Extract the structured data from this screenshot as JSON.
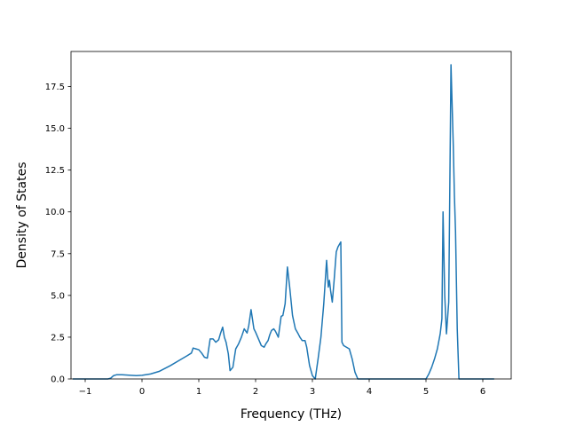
{
  "chart_data": {
    "type": "line",
    "title": "",
    "xlabel": "Frequency (THz)",
    "ylabel": "Density of States",
    "xlim": [
      -1.25,
      6.5
    ],
    "ylim": [
      0,
      19.6
    ],
    "grid": false,
    "legend": "none",
    "xticks": [
      -1,
      0,
      1,
      2,
      3,
      4,
      5,
      6
    ],
    "xtick_labels": [
      "−1",
      "0",
      "1",
      "2",
      "3",
      "4",
      "5",
      "6"
    ],
    "yticks": [
      0,
      2.5,
      5,
      7.5,
      10,
      12.5,
      15,
      17.5
    ],
    "ytick_labels": [
      "0.0",
      "2.5",
      "5.0",
      "7.5",
      "10.0",
      "12.5",
      "15.0",
      "17.5"
    ],
    "series": [
      {
        "color": "#1f77b4",
        "x": [
          -1.22,
          -0.6,
          -0.55,
          -0.5,
          -0.45,
          -0.35,
          -0.2,
          -0.1,
          0.0,
          0.15,
          0.3,
          0.5,
          0.7,
          0.8,
          0.87,
          0.9,
          0.95,
          1.0,
          1.05,
          1.1,
          1.15,
          1.2,
          1.25,
          1.3,
          1.35,
          1.38,
          1.42,
          1.45,
          1.48,
          1.52,
          1.55,
          1.6,
          1.65,
          1.7,
          1.75,
          1.8,
          1.85,
          1.88,
          1.92,
          1.97,
          2.0,
          2.05,
          2.1,
          2.15,
          2.18,
          2.22,
          2.25,
          2.28,
          2.32,
          2.35,
          2.4,
          2.45,
          2.48,
          2.52,
          2.56,
          2.6,
          2.65,
          2.7,
          2.75,
          2.78,
          2.82,
          2.87,
          2.9,
          2.95,
          3.0,
          3.05,
          3.1,
          3.15,
          3.2,
          3.25,
          3.28,
          3.3,
          3.32,
          3.35,
          3.38,
          3.42,
          3.45,
          3.5,
          3.52,
          3.55,
          3.6,
          3.65,
          3.7,
          3.75,
          3.8,
          3.82,
          4.2,
          4.5,
          5.0,
          5.05,
          5.1,
          5.15,
          5.2,
          5.25,
          5.28,
          5.3,
          5.33,
          5.36,
          5.4,
          5.44,
          5.48,
          5.5,
          5.52,
          5.55,
          5.58,
          5.62,
          6.2
        ],
        "y": [
          0.0,
          0.0,
          0.05,
          0.2,
          0.25,
          0.25,
          0.22,
          0.2,
          0.22,
          0.3,
          0.45,
          0.8,
          1.2,
          1.4,
          1.55,
          1.85,
          1.8,
          1.75,
          1.55,
          1.3,
          1.25,
          2.4,
          2.4,
          2.2,
          2.35,
          2.7,
          3.1,
          2.5,
          2.2,
          1.5,
          0.5,
          0.7,
          1.8,
          2.1,
          2.5,
          3.0,
          2.75,
          3.2,
          4.15,
          3.0,
          2.8,
          2.4,
          2.0,
          1.9,
          2.1,
          2.3,
          2.65,
          2.9,
          3.0,
          2.85,
          2.5,
          3.75,
          3.8,
          4.5,
          6.7,
          5.5,
          3.8,
          3.0,
          2.7,
          2.5,
          2.3,
          2.3,
          1.9,
          0.8,
          0.2,
          0.0,
          1.2,
          2.5,
          4.5,
          7.1,
          5.5,
          5.9,
          5.3,
          4.6,
          5.8,
          7.6,
          7.9,
          8.2,
          2.2,
          2.0,
          1.9,
          1.8,
          1.2,
          0.4,
          0.0,
          0.0,
          0.0,
          0.0,
          0.0,
          0.3,
          0.7,
          1.2,
          1.8,
          2.7,
          3.6,
          10.0,
          5.0,
          2.7,
          4.6,
          18.8,
          14.0,
          11.0,
          8.8,
          3.0,
          0.0,
          0.0,
          0.0
        ]
      }
    ]
  }
}
